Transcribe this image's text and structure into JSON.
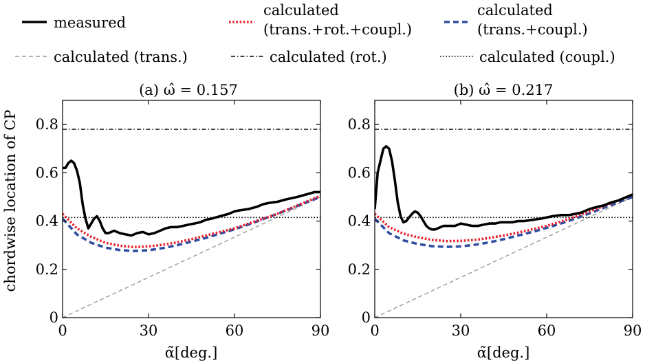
{
  "legend": {
    "items": [
      {
        "label_lines": [
          "measured"
        ],
        "color": "#000000",
        "style": "solid-thick"
      },
      {
        "label_lines": [
          "calculated",
          "(trans.+rot.+coupl.)"
        ],
        "color": "#e8202a",
        "style": "dotted-thick"
      },
      {
        "label_lines": [
          "calculated",
          "(trans.+coupl.)"
        ],
        "color": "#2f4ea0",
        "style": "dashed-thick"
      },
      {
        "label_lines": [
          "calculated (trans.)"
        ],
        "color": "#999999",
        "style": "dashed-thin"
      },
      {
        "label_lines": [
          "calculated (rot.)"
        ],
        "color": "#000000",
        "style": "dashdot-thin"
      },
      {
        "label_lines": [
          "calculated (coupl.)"
        ],
        "color": "#000000",
        "style": "dotted-thin"
      }
    ]
  },
  "ylabel": "chordwise location of CP",
  "xlabel": "α̃[deg.]",
  "chart_data": [
    {
      "type": "line",
      "title": "(a) ω̂ = 0.157",
      "xlim": [
        0,
        90
      ],
      "ylim": [
        0,
        0.9
      ],
      "xticks": [
        0,
        30,
        60,
        90
      ],
      "yticks": [
        0,
        0.2,
        0.4,
        0.6,
        0.8
      ],
      "xtick_labels": [
        "0",
        "30",
        "60",
        "90"
      ],
      "ytick_labels": [
        "0",
        "0.2",
        "0.4",
        "0.6",
        "0.8"
      ],
      "series": [
        {
          "name": "measured",
          "color": "#000000",
          "x": [
            0,
            1,
            2,
            3,
            4,
            5,
            6,
            7,
            8,
            9,
            10,
            11,
            12,
            13,
            14,
            15,
            16,
            18,
            20,
            22,
            24,
            26,
            28,
            30,
            32,
            34,
            36,
            38,
            40,
            42,
            44,
            46,
            48,
            50,
            52,
            55,
            58,
            60,
            62,
            65,
            68,
            70,
            72,
            75,
            78,
            80,
            82,
            85,
            88,
            90
          ],
          "y": [
            0.62,
            0.62,
            0.64,
            0.65,
            0.64,
            0.61,
            0.56,
            0.47,
            0.41,
            0.37,
            0.39,
            0.41,
            0.42,
            0.4,
            0.37,
            0.35,
            0.35,
            0.36,
            0.35,
            0.345,
            0.34,
            0.35,
            0.355,
            0.345,
            0.35,
            0.36,
            0.37,
            0.375,
            0.375,
            0.38,
            0.385,
            0.39,
            0.395,
            0.405,
            0.41,
            0.42,
            0.43,
            0.44,
            0.445,
            0.45,
            0.46,
            0.47,
            0.475,
            0.48,
            0.49,
            0.495,
            0.5,
            0.51,
            0.52,
            0.52
          ]
        },
        {
          "name": "calculated (trans.+rot.+coupl.)",
          "color": "#e8202a",
          "x": [
            0,
            5,
            10,
            15,
            20,
            25,
            30,
            35,
            40,
            45,
            50,
            55,
            60,
            65,
            70,
            75,
            80,
            85,
            90
          ],
          "y": [
            0.43,
            0.37,
            0.335,
            0.31,
            0.298,
            0.292,
            0.295,
            0.302,
            0.312,
            0.325,
            0.34,
            0.355,
            0.37,
            0.39,
            0.41,
            0.43,
            0.455,
            0.48,
            0.505
          ]
        },
        {
          "name": "calculated (trans.+coupl.)",
          "color": "#2f4ea0",
          "x": [
            0,
            5,
            10,
            15,
            20,
            25,
            30,
            35,
            40,
            45,
            50,
            55,
            60,
            65,
            70,
            75,
            80,
            85,
            90
          ],
          "y": [
            0.41,
            0.345,
            0.31,
            0.29,
            0.28,
            0.276,
            0.279,
            0.288,
            0.3,
            0.315,
            0.33,
            0.348,
            0.366,
            0.386,
            0.408,
            0.43,
            0.453,
            0.477,
            0.5
          ]
        },
        {
          "name": "calculated (trans.)",
          "color": "#999999",
          "x": [
            0,
            90
          ],
          "y": [
            0,
            0.5
          ]
        },
        {
          "name": "calculated (rot.)",
          "color": "#000000",
          "x": [
            0,
            90
          ],
          "y": [
            0.78,
            0.78
          ]
        },
        {
          "name": "calculated (coupl.)",
          "color": "#000000",
          "x": [
            0,
            90
          ],
          "y": [
            0.415,
            0.415
          ]
        }
      ]
    },
    {
      "type": "line",
      "title": "(b) ω̂ = 0.217",
      "xlim": [
        0,
        90
      ],
      "ylim": [
        0,
        0.9
      ],
      "xticks": [
        0,
        30,
        60,
        90
      ],
      "yticks": [
        0,
        0.2,
        0.4,
        0.6,
        0.8
      ],
      "xtick_labels": [
        "0",
        "30",
        "60",
        "90"
      ],
      "ytick_labels": [
        "0",
        "0.2",
        "0.4",
        "0.6",
        "0.8"
      ],
      "series": [
        {
          "name": "measured",
          "color": "#000000",
          "x": [
            0,
            1,
            2,
            3,
            4,
            5,
            6,
            7,
            8,
            9,
            10,
            11,
            12,
            13,
            14,
            15,
            16,
            17,
            18,
            19,
            20,
            21,
            22,
            23,
            24,
            26,
            28,
            30,
            32,
            34,
            36,
            38,
            40,
            42,
            44,
            46,
            48,
            50,
            52,
            55,
            58,
            60,
            62,
            65,
            68,
            70,
            72,
            75,
            78,
            80,
            82,
            85,
            88,
            90
          ],
          "y": [
            0.45,
            0.6,
            0.65,
            0.7,
            0.71,
            0.7,
            0.65,
            0.57,
            0.48,
            0.42,
            0.395,
            0.4,
            0.415,
            0.43,
            0.44,
            0.435,
            0.42,
            0.4,
            0.38,
            0.37,
            0.365,
            0.365,
            0.37,
            0.375,
            0.38,
            0.38,
            0.38,
            0.39,
            0.385,
            0.38,
            0.38,
            0.385,
            0.39,
            0.39,
            0.395,
            0.395,
            0.395,
            0.4,
            0.4,
            0.405,
            0.41,
            0.415,
            0.42,
            0.425,
            0.425,
            0.43,
            0.435,
            0.45,
            0.46,
            0.465,
            0.475,
            0.485,
            0.5,
            0.51
          ]
        },
        {
          "name": "calculated (trans.+rot.+coupl.)",
          "color": "#e8202a",
          "x": [
            0,
            5,
            10,
            15,
            20,
            25,
            30,
            35,
            40,
            45,
            50,
            55,
            60,
            65,
            70,
            75,
            80,
            85,
            90
          ],
          "y": [
            0.43,
            0.375,
            0.348,
            0.333,
            0.322,
            0.317,
            0.318,
            0.322,
            0.33,
            0.34,
            0.352,
            0.366,
            0.38,
            0.398,
            0.418,
            0.44,
            0.462,
            0.486,
            0.51
          ]
        },
        {
          "name": "calculated (trans.+coupl.)",
          "color": "#2f4ea0",
          "x": [
            0,
            5,
            10,
            15,
            20,
            25,
            30,
            35,
            40,
            45,
            50,
            55,
            60,
            65,
            70,
            75,
            80,
            85,
            90
          ],
          "y": [
            0.41,
            0.35,
            0.32,
            0.305,
            0.296,
            0.293,
            0.295,
            0.302,
            0.312,
            0.325,
            0.34,
            0.355,
            0.372,
            0.39,
            0.41,
            0.432,
            0.455,
            0.478,
            0.5
          ]
        },
        {
          "name": "calculated (trans.)",
          "color": "#999999",
          "x": [
            0,
            90
          ],
          "y": [
            0,
            0.5
          ]
        },
        {
          "name": "calculated (rot.)",
          "color": "#000000",
          "x": [
            0,
            90
          ],
          "y": [
            0.78,
            0.78
          ]
        },
        {
          "name": "calculated (coupl.)",
          "color": "#000000",
          "x": [
            0,
            90
          ],
          "y": [
            0.415,
            0.415
          ]
        }
      ]
    }
  ]
}
